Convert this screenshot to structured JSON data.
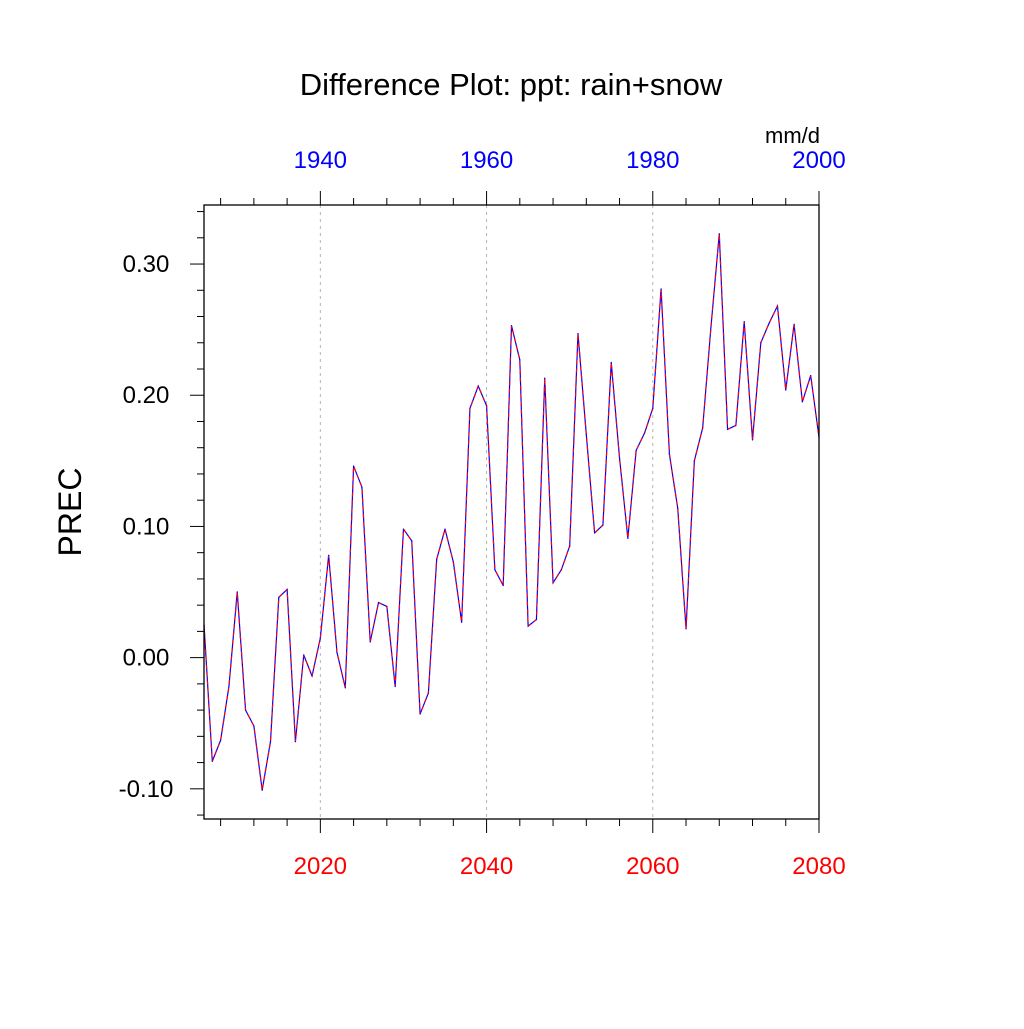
{
  "chart_data": {
    "type": "line",
    "title": "Difference Plot: ppt: rain+snow",
    "ylabel": "PREC",
    "units": "mm/d",
    "ylim": [
      -0.123,
      0.345
    ],
    "yticks": [
      -0.1,
      0.0,
      0.1,
      0.2,
      0.3
    ],
    "ytick_labels": [
      "-0.10",
      "0.00",
      "0.10",
      "0.20",
      "0.30"
    ],
    "grid": "vertical dashed lines at major bottom-axis ticks",
    "bottom_axis": {
      "color": "#ff0000",
      "xlim": [
        2006,
        2080
      ],
      "ticks": [
        2020,
        2040,
        2060,
        2080
      ],
      "tick_labels": [
        "2020",
        "2040",
        "2060",
        "2080"
      ]
    },
    "top_axis": {
      "color": "#0000ff",
      "xlim": [
        1926,
        2000
      ],
      "ticks": [
        1940,
        1960,
        1980,
        2000
      ],
      "tick_labels": [
        "1940",
        "1960",
        "1980",
        "2000"
      ]
    },
    "series": [
      {
        "color": "#0000ff",
        "dash_color": "#ff0000",
        "x": [
          2006,
          2007,
          2008,
          2009,
          2010,
          2011,
          2012,
          2013,
          2014,
          2015,
          2016,
          2017,
          2018,
          2019,
          2020,
          2021,
          2022,
          2023,
          2024,
          2025,
          2026,
          2027,
          2028,
          2029,
          2030,
          2031,
          2032,
          2033,
          2034,
          2035,
          2036,
          2037,
          2038,
          2039,
          2040,
          2041,
          2042,
          2043,
          2044,
          2045,
          2046,
          2047,
          2048,
          2049,
          2050,
          2051,
          2052,
          2053,
          2054,
          2055,
          2056,
          2057,
          2058,
          2059,
          2060,
          2061,
          2062,
          2063,
          2064,
          2065,
          2066,
          2067,
          2068,
          2069,
          2070,
          2071,
          2072,
          2073,
          2074,
          2075,
          2076,
          2077,
          2078,
          2079,
          2080
        ],
        "values": [
          0.025,
          -0.079,
          -0.063,
          -0.022,
          0.05,
          -0.04,
          -0.052,
          -0.101,
          -0.064,
          0.046,
          0.052,
          -0.064,
          0.002,
          -0.014,
          0.015,
          0.078,
          0.004,
          -0.023,
          0.146,
          0.13,
          0.012,
          0.042,
          0.039,
          -0.022,
          0.098,
          0.089,
          -0.043,
          -0.027,
          0.075,
          0.098,
          0.073,
          0.027,
          0.19,
          0.207,
          0.192,
          0.067,
          0.055,
          0.253,
          0.227,
          0.024,
          0.029,
          0.213,
          0.057,
          0.067,
          0.085,
          0.247,
          0.17,
          0.095,
          0.101,
          0.225,
          0.152,
          0.091,
          0.158,
          0.171,
          0.19,
          0.281,
          0.155,
          0.114,
          0.022,
          0.15,
          0.175,
          0.252,
          0.323,
          0.174,
          0.177,
          0.256,
          0.166,
          0.24,
          0.255,
          0.268,
          0.204,
          0.254,
          0.195,
          0.215,
          0.168
        ]
      }
    ]
  }
}
